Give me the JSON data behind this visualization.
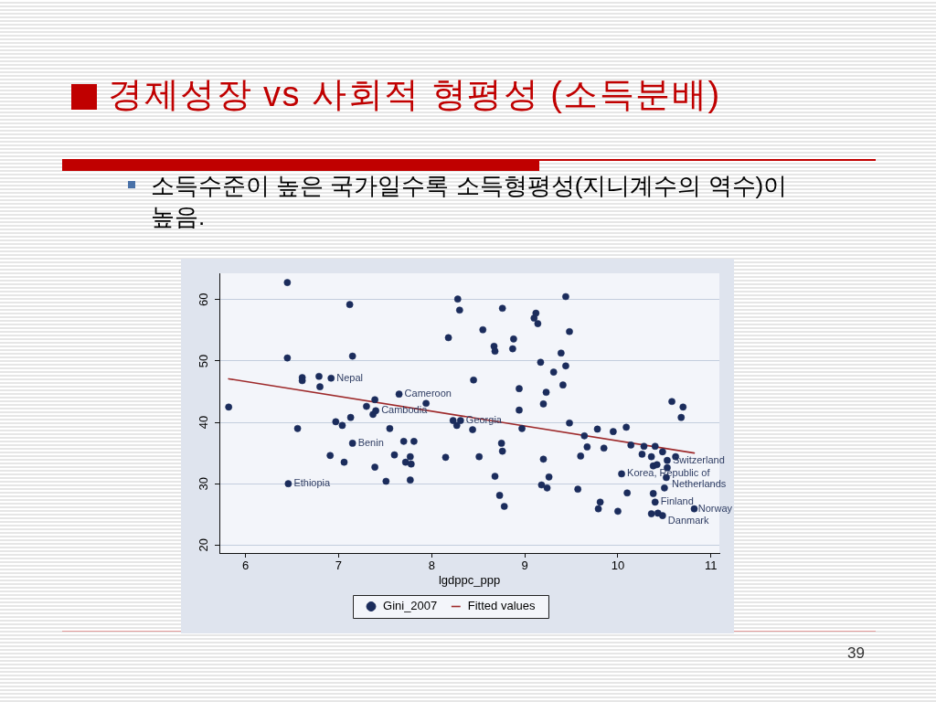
{
  "chart_data": {
    "type": "scatter",
    "title": "경제성장 vs 사회적 형평성 (소득분배)",
    "subtitle": "소득수준이 높은 국가일수록 소득형평성(지니계수의 역수)이 높음.",
    "xlabel": "lgdppc_ppp",
    "series": [
      {
        "name": "Gini_2007",
        "type": "scatter",
        "color": "#1b2c5c",
        "x": [
          5.82,
          6.45,
          6.45,
          6.46,
          6.56,
          6.61,
          6.61,
          6.79,
          6.8,
          6.91,
          6.92,
          6.97,
          7.04,
          7.06,
          7.12,
          7.13,
          7.15,
          7.15,
          7.3,
          7.37,
          7.39,
          7.39,
          7.4,
          7.51,
          7.55,
          7.6,
          7.65,
          7.7,
          7.72,
          7.77,
          7.77,
          7.78,
          7.81,
          7.94,
          8.15,
          8.18,
          8.23,
          8.27,
          8.28,
          8.3,
          8.31,
          8.44,
          8.45,
          8.51,
          8.55,
          8.67,
          8.68,
          8.68,
          8.73,
          8.75,
          8.76,
          8.76,
          8.78,
          8.87,
          8.88,
          8.94,
          8.94,
          8.97,
          9.1,
          9.12,
          9.14,
          9.17,
          9.18,
          9.2,
          9.2,
          9.23,
          9.24,
          9.26,
          9.31,
          9.39,
          9.41,
          9.44,
          9.44,
          9.48,
          9.48,
          9.57,
          9.6,
          9.64,
          9.67,
          9.78,
          9.79,
          9.81,
          9.85,
          9.95,
          10.0,
          10.04,
          10.09,
          10.1,
          10.14,
          10.26,
          10.28,
          10.36,
          10.36,
          10.38,
          10.38,
          10.4,
          10.4,
          10.42,
          10.43,
          10.48,
          10.48,
          10.5,
          10.52,
          10.53,
          10.53,
          10.58,
          10.62,
          10.68,
          10.7,
          10.82
        ],
        "values": [
          42.5,
          62.8,
          50.5,
          30.0,
          39.0,
          47.3,
          46.8,
          47.5,
          45.8,
          34.6,
          47.2,
          40.1,
          39.5,
          33.5,
          59.2,
          40.8,
          50.8,
          36.6,
          42.6,
          41.3,
          43.7,
          32.7,
          41.9,
          30.4,
          39.0,
          34.7,
          44.6,
          36.9,
          33.5,
          34.4,
          30.6,
          33.2,
          36.9,
          43.1,
          34.3,
          53.8,
          40.3,
          39.5,
          60.1,
          58.3,
          40.3,
          38.8,
          46.9,
          34.4,
          55.1,
          52.4,
          51.6,
          31.2,
          28.1,
          36.6,
          35.3,
          58.6,
          26.3,
          52.0,
          53.6,
          45.5,
          42.0,
          39.0,
          57.0,
          57.8,
          56.1,
          49.8,
          29.8,
          34.0,
          43.0,
          44.9,
          29.3,
          31.1,
          48.2,
          51.3,
          46.1,
          49.2,
          60.5,
          54.8,
          39.9,
          29.1,
          34.5,
          37.8,
          36.0,
          38.9,
          25.9,
          27.0,
          35.8,
          38.5,
          25.5,
          31.6,
          39.2,
          28.5,
          36.3,
          34.8,
          36.1,
          34.4,
          25.1,
          32.9,
          28.4,
          36.1,
          27.0,
          33.1,
          25.2,
          35.2,
          24.8,
          29.3,
          31.0,
          33.8,
          32.6,
          43.4,
          34.4,
          40.8,
          42.5,
          25.9
        ]
      },
      {
        "name": "Fitted values",
        "type": "line",
        "color": "#9e2a2b",
        "marker": "none",
        "x": [
          5.82,
          10.82
        ],
        "values": [
          47.1,
          35.0
        ]
      }
    ],
    "marker": "circle",
    "line_style": "solid",
    "xlim": [
      5.72,
      11.09
    ],
    "xticks": [
      6,
      7,
      8,
      9,
      10,
      11
    ],
    "ylim": [
      18.7,
      64.3
    ],
    "yticks": [
      20,
      30,
      40,
      50,
      60
    ],
    "grid": "y",
    "legend": "bottom",
    "annotations": [
      {
        "text": "Nepal",
        "x": 6.92,
        "y": 47.2
      },
      {
        "text": "Cameroon",
        "x": 7.65,
        "y": 44.6
      },
      {
        "text": "Cambodia",
        "x": 7.4,
        "y": 41.9
      },
      {
        "text": "Georgia",
        "x": 8.31,
        "y": 40.3
      },
      {
        "text": "Benin",
        "x": 7.15,
        "y": 36.6
      },
      {
        "text": "Ethiopia",
        "x": 6.46,
        "y": 30.0
      },
      {
        "text": "Switzerland",
        "x": 10.53,
        "y": 33.8
      },
      {
        "text": "Korea, Republic of",
        "x": 10.04,
        "y": 31.6
      },
      {
        "text": "Netherlands",
        "x": 10.52,
        "y": 31.0
      },
      {
        "text": "Finland",
        "x": 10.4,
        "y": 27.0
      },
      {
        "text": "Norway",
        "x": 10.82,
        "y": 25.9
      },
      {
        "text": "Danmark",
        "x": 10.48,
        "y": 24.8
      },
      "39"
    ]
  }
}
